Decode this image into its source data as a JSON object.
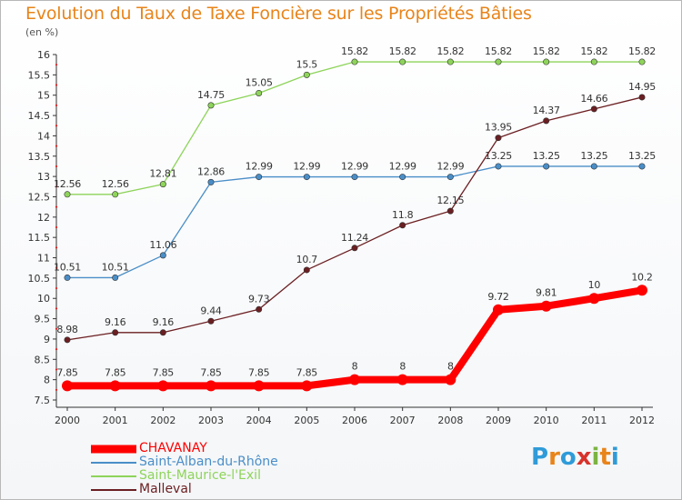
{
  "title": "Evolution du Taux de Taxe Foncière sur les Propriétés Bâties",
  "unit_label": "(en %)",
  "brand": {
    "letters": [
      "P",
      "r",
      "o",
      "x",
      "i",
      "t",
      "i"
    ],
    "colors": [
      "#2f9bd8",
      "#e8841a",
      "#2f9bd8",
      "#d8322c",
      "#7cb342",
      "#e8841a",
      "#2f9bd8"
    ]
  },
  "chart_data": {
    "type": "line",
    "title": "Evolution du Taux de Taxe Foncière sur les Propriétés Bâties",
    "ylabel": "(en %)",
    "xlabel": "",
    "x": [
      "2000",
      "2001",
      "2002",
      "2003",
      "2004",
      "2005",
      "2006",
      "2007",
      "2008",
      "2009",
      "2010",
      "2011",
      "2012"
    ],
    "ylim": [
      7.5,
      16
    ],
    "yticks": [
      "7.5",
      "8",
      "8.5",
      "9",
      "9.5",
      "10",
      "10.5",
      "11",
      "11.5",
      "12",
      "12.5",
      "13",
      "13.5",
      "14",
      "14.5",
      "15",
      "15.5",
      "16"
    ],
    "grid": false,
    "legend_position": "bottom-left",
    "series": [
      {
        "name": "CHAVANAY",
        "color": "#ff0000",
        "values": [
          7.85,
          7.85,
          7.85,
          7.85,
          7.85,
          7.85,
          8,
          8,
          8,
          9.72,
          9.81,
          10,
          10.2
        ],
        "labels": [
          "7.85",
          "7.85",
          "7.85",
          "7.85",
          "7.85",
          "7.85",
          "8",
          "8",
          "8",
          "9.72",
          "9.81",
          "10",
          "10.2"
        ]
      },
      {
        "name": "Saint-Alban-du-Rhône",
        "color": "#4a8ec8",
        "values": [
          10.51,
          10.51,
          11.06,
          12.86,
          12.99,
          12.99,
          12.99,
          12.99,
          12.99,
          13.25,
          13.25,
          13.25,
          13.25
        ],
        "labels": [
          "10.51",
          "10.51",
          "11.06",
          "12.86",
          "12.99",
          "12.99",
          "12.99",
          "12.99",
          "12.99",
          "13.25",
          "13.25",
          "13.25",
          "13.25"
        ]
      },
      {
        "name": "Saint-Maurice-l'Exil",
        "color": "#8ed45a",
        "values": [
          12.56,
          12.56,
          12.81,
          14.75,
          15.05,
          15.5,
          15.82,
          15.82,
          15.82,
          15.82,
          15.82,
          15.82,
          15.82
        ],
        "labels": [
          "12.56",
          "12.56",
          "12.81",
          "14.75",
          "15.05",
          "15.5",
          "15.82",
          "15.82",
          "15.82",
          "15.82",
          "15.82",
          "15.82",
          "15.82"
        ]
      },
      {
        "name": "Malleval",
        "color": "#6b1f22",
        "values": [
          8.98,
          9.16,
          9.16,
          9.44,
          9.73,
          10.7,
          11.24,
          11.8,
          12.15,
          13.95,
          14.37,
          14.66,
          14.95
        ],
        "labels": [
          "8.98",
          "9.16",
          "9.16",
          "9.44",
          "9.73",
          "10.7",
          "11.24",
          "11.8",
          "12.15",
          "13.95",
          "14.37",
          "14.66",
          "14.95"
        ]
      }
    ]
  }
}
